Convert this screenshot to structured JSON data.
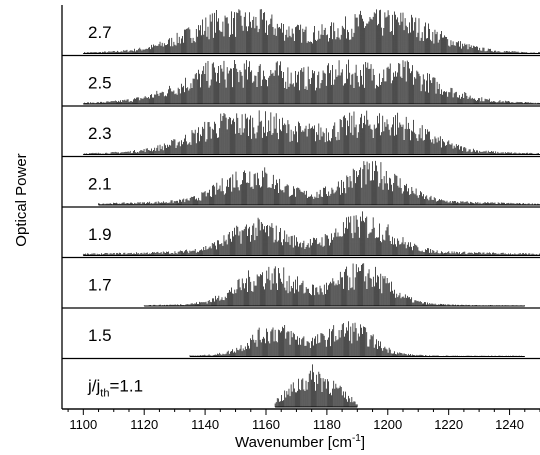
{
  "chart_data": {
    "type": "line",
    "xlabel": "Wavenumber [cm",
    "xlabel_sup": "-1",
    "xlabel_end": "]",
    "ylabel": "Optical Power",
    "xlim": [
      1093,
      1250
    ],
    "xticks": [
      "1100",
      "1120",
      "1140",
      "1160",
      "1180",
      "1200",
      "1220",
      "1240"
    ],
    "grid": false,
    "legend": "none",
    "line_color": "#000000",
    "panels": [
      {
        "label": "2.7",
        "range": [
          1100,
          1250
        ],
        "peaks": [
          {
            "center": 1150,
            "width": 14,
            "height": 0.92
          },
          {
            "center": 1200,
            "width": 14,
            "height": 0.9
          },
          {
            "center": 1175,
            "width": 30,
            "height": 0.25
          }
        ]
      },
      {
        "label": "2.5",
        "range": [
          1100,
          1250
        ],
        "peaks": [
          {
            "center": 1150,
            "width": 15,
            "height": 0.95
          },
          {
            "center": 1198,
            "width": 15,
            "height": 0.95
          },
          {
            "center": 1175,
            "width": 30,
            "height": 0.3
          }
        ]
      },
      {
        "label": "2.3",
        "range": [
          1100,
          1250
        ],
        "peaks": [
          {
            "center": 1152,
            "width": 14,
            "height": 0.85
          },
          {
            "center": 1198,
            "width": 13,
            "height": 0.85
          },
          {
            "center": 1175,
            "width": 30,
            "height": 0.3
          }
        ]
      },
      {
        "label": "2.1",
        "range": [
          1105,
          1250
        ],
        "peaks": [
          {
            "center": 1155,
            "width": 9,
            "height": 0.8
          },
          {
            "center": 1195,
            "width": 9,
            "height": 0.88
          },
          {
            "center": 1175,
            "width": 35,
            "height": 0.18
          }
        ]
      },
      {
        "label": "1.9",
        "range": [
          1100,
          1250
        ],
        "peaks": [
          {
            "center": 1157,
            "width": 9,
            "height": 0.7
          },
          {
            "center": 1192,
            "width": 9,
            "height": 0.85
          },
          {
            "center": 1175,
            "width": 40,
            "height": 0.15
          }
        ]
      },
      {
        "label": "1.7",
        "range": [
          1120,
          1245
        ],
        "peaks": [
          {
            "center": 1160,
            "width": 9,
            "height": 0.8
          },
          {
            "center": 1192,
            "width": 8,
            "height": 0.85
          },
          {
            "center": 1175,
            "width": 20,
            "height": 0.22
          }
        ]
      },
      {
        "label": "1.5",
        "range": [
          1135,
          1245
        ],
        "peaks": [
          {
            "center": 1162,
            "width": 7,
            "height": 0.6
          },
          {
            "center": 1188,
            "width": 7,
            "height": 0.65
          },
          {
            "center": 1175,
            "width": 15,
            "height": 0.25
          }
        ]
      },
      {
        "label": "j/j",
        "label_sub": "th",
        "label_end": "=1.1",
        "range": [
          1163,
          1190
        ],
        "peaks": [
          {
            "center": 1176,
            "width": 7,
            "height": 0.95
          }
        ]
      }
    ]
  }
}
